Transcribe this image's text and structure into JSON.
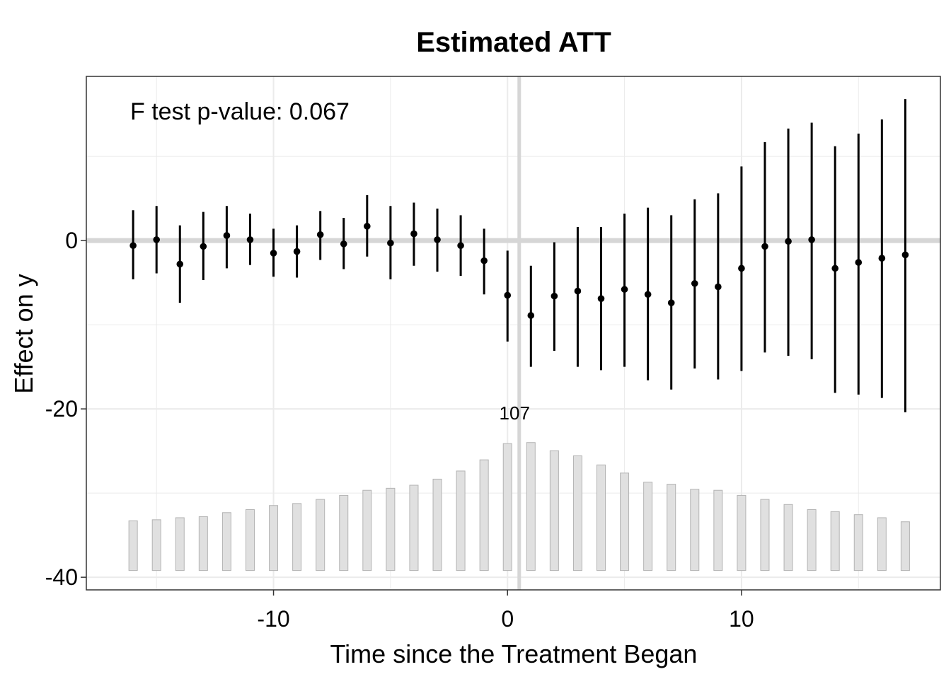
{
  "chart_data": {
    "type": "scatter",
    "title": "Estimated ATT",
    "xlabel": "Time since the Treatment Began",
    "ylabel": "Effect on y",
    "annotation": "F test p-value: 0.067",
    "count_label": "107",
    "xlim": [
      -18,
      18.5
    ],
    "ylim": [
      -41.5,
      19.5
    ],
    "x_ticks": [
      -10,
      0,
      10
    ],
    "x_tick_labels": [
      "-10",
      "0",
      "10"
    ],
    "y_ticks": [
      0,
      -20,
      -40
    ],
    "y_tick_labels": [
      "0",
      "-20",
      "-40"
    ],
    "grid": true,
    "reference_lines": {
      "x": 0.5,
      "y": 0
    },
    "x": [
      -16,
      -15,
      -14,
      -13,
      -12,
      -11,
      -10,
      -9,
      -8,
      -7,
      -6,
      -5,
      -4,
      -3,
      -2,
      -1,
      0,
      1,
      2,
      3,
      4,
      5,
      6,
      7,
      8,
      9,
      10,
      11,
      12,
      13,
      14,
      15,
      16,
      17
    ],
    "estimate": [
      -0.6,
      0.1,
      -2.8,
      -0.7,
      0.6,
      0.1,
      -1.5,
      -1.3,
      0.7,
      -0.4,
      1.7,
      -0.3,
      0.8,
      0.1,
      -0.6,
      -2.4,
      -6.5,
      -8.9,
      -6.6,
      -6.0,
      -6.9,
      -5.8,
      -6.4,
      -7.4,
      -5.1,
      -5.5,
      -3.3,
      -0.7,
      -0.1,
      0.1,
      -3.3,
      -2.6,
      -2.1,
      -1.7
    ],
    "ci_lower": [
      -4.6,
      -3.9,
      -7.4,
      -4.7,
      -3.3,
      -2.9,
      -4.3,
      -4.4,
      -2.3,
      -3.4,
      -1.9,
      -4.6,
      -3.0,
      -3.7,
      -4.2,
      -6.4,
      -12.0,
      -15.0,
      -13.1,
      -15.0,
      -15.4,
      -15.0,
      -16.6,
      -17.7,
      -15.2,
      -16.5,
      -15.5,
      -13.3,
      -13.7,
      -14.1,
      -18.1,
      -18.3,
      -18.7,
      -20.4
    ],
    "ci_upper": [
      3.6,
      4.1,
      1.8,
      3.4,
      4.1,
      3.2,
      1.4,
      1.8,
      3.5,
      2.7,
      5.4,
      4.1,
      4.5,
      3.8,
      3.0,
      1.4,
      -1.2,
      -3.0,
      -0.2,
      1.6,
      1.6,
      3.2,
      3.9,
      3.0,
      4.9,
      5.6,
      8.8,
      11.7,
      13.3,
      14.0,
      11.2,
      12.7,
      14.4,
      16.8
    ],
    "treated_counts": [
      49,
      50,
      52,
      53,
      57,
      60,
      64,
      66,
      70,
      74,
      79,
      81,
      84,
      90,
      98,
      109,
      125,
      126,
      118,
      113,
      104,
      96,
      87,
      85,
      80,
      79,
      74,
      70,
      65,
      60,
      58,
      55,
      52,
      48
    ],
    "count_max": 126,
    "count_band": [
      -39.2,
      -24.0
    ]
  }
}
